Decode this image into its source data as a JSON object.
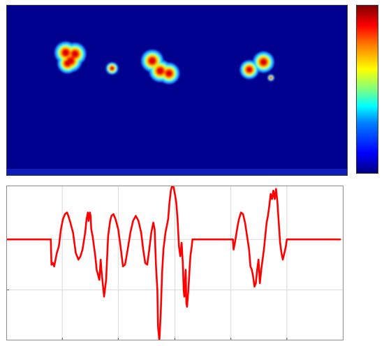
{
  "chart_data": [
    {
      "type": "heatmap",
      "grid": false,
      "colormap": [
        "#00007f",
        "#0000ff",
        "#0080ff",
        "#00ffff",
        "#80ff80",
        "#ffff00",
        "#ff8000",
        "#ff0000",
        "#7f0000"
      ],
      "background_color": "#00008f",
      "xlim": [
        0,
        550
      ],
      "ylim": [
        0,
        270
      ],
      "spots": [
        {
          "x": 95,
          "y": 75,
          "intensity": 1.0
        },
        {
          "x": 110,
          "y": 77,
          "intensity": 1.0
        },
        {
          "x": 103,
          "y": 88,
          "intensity": 1.0
        },
        {
          "x": 98,
          "y": 92,
          "intensity": 0.9
        },
        {
          "x": 170,
          "y": 100,
          "intensity": 0.55
        },
        {
          "x": 235,
          "y": 88,
          "intensity": 1.0
        },
        {
          "x": 248,
          "y": 104,
          "intensity": 1.0
        },
        {
          "x": 262,
          "y": 108,
          "intensity": 0.95
        },
        {
          "x": 392,
          "y": 102,
          "intensity": 0.85
        },
        {
          "x": 415,
          "y": 90,
          "intensity": 0.95
        },
        {
          "x": 427,
          "y": 115,
          "intensity": 0.3
        }
      ],
      "colorbar": {
        "position": "right",
        "ticks_shown": false
      }
    },
    {
      "type": "line",
      "grid": true,
      "line_color": "#ff0000",
      "xlim": [
        0,
        500
      ],
      "ylim": [
        -3,
        1.6
      ],
      "x_ticks": [
        83,
        166,
        250,
        333,
        416
      ],
      "y_ticks": [
        -1.5,
        0
      ],
      "series": [
        {
          "x": [
            0,
            66,
            67,
            69,
            71,
            73,
            75,
            78,
            81,
            84,
            87,
            90,
            92,
            95,
            99,
            103,
            107,
            110,
            113,
            117,
            119,
            121,
            122,
            124,
            125,
            126,
            128,
            130,
            132,
            134,
            136,
            138,
            140,
            141,
            143,
            145,
            148,
            151,
            154,
            156,
            159,
            162,
            166,
            170,
            173,
            176,
            177,
            180,
            184,
            188,
            192,
            196,
            200,
            203,
            206,
            209,
            212,
            215,
            218,
            220,
            222,
            224,
            225,
            227,
            229,
            231,
            233,
            236,
            238,
            240,
            242,
            244,
            246,
            248,
            250,
            252,
            254,
            256,
            258,
            260,
            262,
            263,
            264,
            266,
            267,
            268,
            270,
            272,
            273,
            275,
            276,
            283,
            290,
            300,
            310,
            320,
            330,
            336,
            337,
            339,
            341,
            343,
            345,
            348,
            351,
            354,
            357,
            360,
            362,
            364,
            366,
            368,
            370,
            372,
            374,
            376,
            378,
            380,
            382,
            384,
            386,
            388,
            390,
            392,
            394,
            396,
            398,
            400,
            402,
            404,
            406,
            408,
            410,
            413,
            415,
            416,
            417,
            430,
            450,
            470,
            495
          ],
          "y": [
            0,
            0,
            -0.75,
            -0.7,
            -0.8,
            -0.6,
            -0.4,
            -0.2,
            0.3,
            0.6,
            0.75,
            0.8,
            0.7,
            0.5,
            0.2,
            -0.4,
            -0.6,
            -0.5,
            -0.3,
            0.2,
            0.6,
            0.8,
            0.55,
            0.8,
            0.7,
            0.3,
            0.1,
            -0.2,
            -0.5,
            -0.9,
            -1.05,
            -1.2,
            -0.6,
            -0.9,
            -1.3,
            -1.7,
            -1.2,
            0.1,
            0.55,
            0.7,
            0.75,
            0.6,
            0.3,
            -0.3,
            -0.8,
            -0.75,
            -0.65,
            -0.3,
            0.2,
            0.55,
            0.7,
            0.55,
            0.2,
            -0.3,
            -0.7,
            -0.75,
            -0.3,
            0.2,
            0.5,
            0.3,
            -0.8,
            -1.5,
            -2.6,
            -3.0,
            -2.2,
            -1.0,
            -0.3,
            0.2,
            0.4,
            0.6,
            1.1,
            1.45,
            1.6,
            1.55,
            1.35,
            1.1,
            0.6,
            -0.2,
            -0.5,
            -0.1,
            -0.8,
            -1.5,
            -1.7,
            -0.9,
            -1.9,
            -2.0,
            -1.5,
            -0.8,
            -0.5,
            -0.2,
            0,
            0,
            0,
            0,
            0,
            0,
            0,
            0,
            -0.3,
            -0.1,
            0.15,
            0.4,
            0.6,
            0.8,
            0.75,
            0.5,
            0.1,
            -0.3,
            -0.8,
            -0.9,
            -1.1,
            -1.4,
            -1.3,
            -0.9,
            -0.6,
            -1.3,
            -0.9,
            -0.6,
            -0.3,
            0.1,
            0.5,
            0.7,
            1.0,
            1.35,
            1.2,
            1.45,
            1.2,
            1.5,
            1.1,
            0.5,
            -0.1,
            -0.4,
            -0.6,
            -0.35,
            -0.15,
            0,
            0,
            0,
            0,
            0,
            0
          ]
        }
      ]
    }
  ]
}
